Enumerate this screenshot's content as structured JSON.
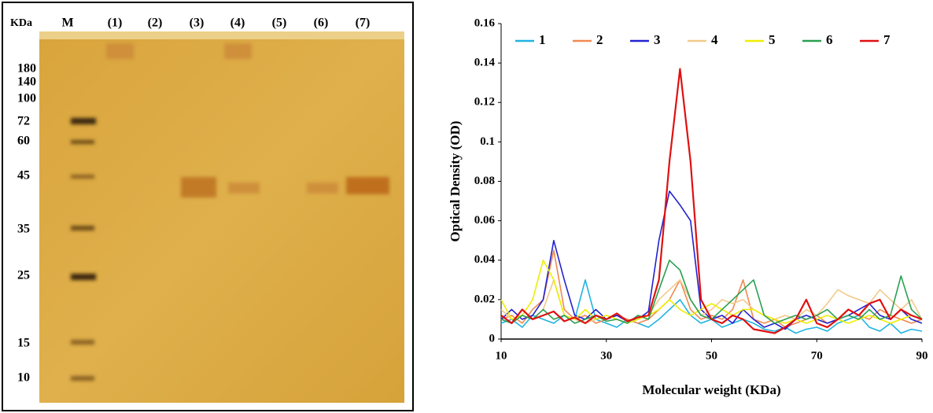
{
  "gel": {
    "header": [
      "KDa",
      "M",
      "(1)",
      "(2)",
      "(3)",
      "(4)",
      "(5)",
      "(6)",
      "(7)"
    ],
    "markers": [
      "180",
      "140",
      "100",
      "72",
      "60",
      "45",
      "35",
      "25",
      "15",
      "10"
    ]
  },
  "chart_data": {
    "type": "line",
    "x_label": "Molecular weight (KDa)",
    "y_label": "Optical Density (OD)",
    "x": [
      10,
      12,
      14,
      16,
      18,
      20,
      22,
      24,
      26,
      28,
      30,
      32,
      34,
      36,
      38,
      40,
      42,
      44,
      46,
      48,
      50,
      52,
      54,
      56,
      58,
      60,
      62,
      64,
      66,
      68,
      70,
      72,
      74,
      76,
      78,
      80,
      82,
      84,
      86,
      88,
      90
    ],
    "xlim": [
      10,
      90
    ],
    "xticks": [
      10,
      30,
      50,
      70,
      90
    ],
    "ylim": [
      0,
      0.16
    ],
    "yticks": [
      0,
      0.02,
      0.04,
      0.06,
      0.08,
      0.1,
      0.12,
      0.14,
      0.16
    ],
    "legend": "top",
    "series": [
      {
        "name": "1",
        "color": "#1fb4e0",
        "values": [
          0.008,
          0.01,
          0.006,
          0.012,
          0.01,
          0.008,
          0.012,
          0.01,
          0.03,
          0.01,
          0.008,
          0.006,
          0.01,
          0.008,
          0.006,
          0.01,
          0.015,
          0.02,
          0.012,
          0.008,
          0.01,
          0.006,
          0.008,
          0.01,
          0.008,
          0.005,
          0.004,
          0.006,
          0.003,
          0.005,
          0.006,
          0.004,
          0.008,
          0.01,
          0.012,
          0.006,
          0.004,
          0.008,
          0.003,
          0.005,
          0.004
        ]
      },
      {
        "name": "2",
        "color": "#f08a50",
        "values": [
          0.01,
          0.012,
          0.008,
          0.015,
          0.02,
          0.045,
          0.015,
          0.01,
          0.012,
          0.008,
          0.01,
          0.012,
          0.01,
          0.008,
          0.01,
          0.015,
          0.02,
          0.03,
          0.015,
          0.01,
          0.012,
          0.01,
          0.015,
          0.03,
          0.01,
          0.008,
          0.01,
          0.006,
          0.008,
          0.01,
          0.012,
          0.008,
          0.01,
          0.015,
          0.012,
          0.01,
          0.015,
          0.012,
          0.01,
          0.008,
          0.01
        ]
      },
      {
        "name": "3",
        "color": "#2222d0",
        "values": [
          0.01,
          0.015,
          0.01,
          0.012,
          0.02,
          0.05,
          0.03,
          0.012,
          0.01,
          0.015,
          0.01,
          0.012,
          0.009,
          0.01,
          0.014,
          0.05,
          0.075,
          0.068,
          0.06,
          0.015,
          0.01,
          0.012,
          0.008,
          0.015,
          0.01,
          0.006,
          0.008,
          0.005,
          0.01,
          0.012,
          0.01,
          0.008,
          0.01,
          0.012,
          0.015,
          0.018,
          0.012,
          0.01,
          0.015,
          0.01,
          0.008
        ]
      },
      {
        "name": "4",
        "color": "#f2c98a",
        "values": [
          0.015,
          0.01,
          0.012,
          0.01,
          0.015,
          0.03,
          0.012,
          0.01,
          0.008,
          0.01,
          0.012,
          0.01,
          0.008,
          0.01,
          0.012,
          0.02,
          0.025,
          0.03,
          0.02,
          0.012,
          0.015,
          0.02,
          0.018,
          0.02,
          0.015,
          0.012,
          0.01,
          0.012,
          0.01,
          0.015,
          0.012,
          0.018,
          0.025,
          0.022,
          0.02,
          0.018,
          0.025,
          0.02,
          0.015,
          0.02,
          0.01
        ]
      },
      {
        "name": "5",
        "color": "#eeee00",
        "values": [
          0.02,
          0.01,
          0.012,
          0.02,
          0.04,
          0.03,
          0.012,
          0.01,
          0.015,
          0.01,
          0.012,
          0.01,
          0.008,
          0.01,
          0.012,
          0.015,
          0.02,
          0.015,
          0.012,
          0.015,
          0.018,
          0.015,
          0.012,
          0.015,
          0.015,
          0.012,
          0.01,
          0.008,
          0.01,
          0.008,
          0.01,
          0.012,
          0.01,
          0.008,
          0.01,
          0.012,
          0.01,
          0.008,
          0.01,
          0.012,
          0.01
        ]
      },
      {
        "name": "6",
        "color": "#2aa050",
        "values": [
          0.01,
          0.008,
          0.012,
          0.01,
          0.015,
          0.01,
          0.012,
          0.008,
          0.01,
          0.012,
          0.009,
          0.01,
          0.008,
          0.012,
          0.01,
          0.025,
          0.04,
          0.035,
          0.02,
          0.012,
          0.01,
          0.015,
          0.02,
          0.025,
          0.03,
          0.012,
          0.008,
          0.01,
          0.012,
          0.01,
          0.012,
          0.015,
          0.01,
          0.012,
          0.01,
          0.015,
          0.01,
          0.012,
          0.032,
          0.015,
          0.01
        ]
      },
      {
        "name": "7",
        "color": "#e01010",
        "values": [
          0.012,
          0.008,
          0.015,
          0.01,
          0.012,
          0.014,
          0.009,
          0.011,
          0.008,
          0.012,
          0.01,
          0.013,
          0.009,
          0.011,
          0.012,
          0.03,
          0.09,
          0.137,
          0.09,
          0.02,
          0.01,
          0.008,
          0.012,
          0.01,
          0.005,
          0.004,
          0.003,
          0.006,
          0.01,
          0.02,
          0.008,
          0.006,
          0.01,
          0.015,
          0.012,
          0.018,
          0.02,
          0.01,
          0.015,
          0.012,
          0.01
        ]
      }
    ]
  }
}
